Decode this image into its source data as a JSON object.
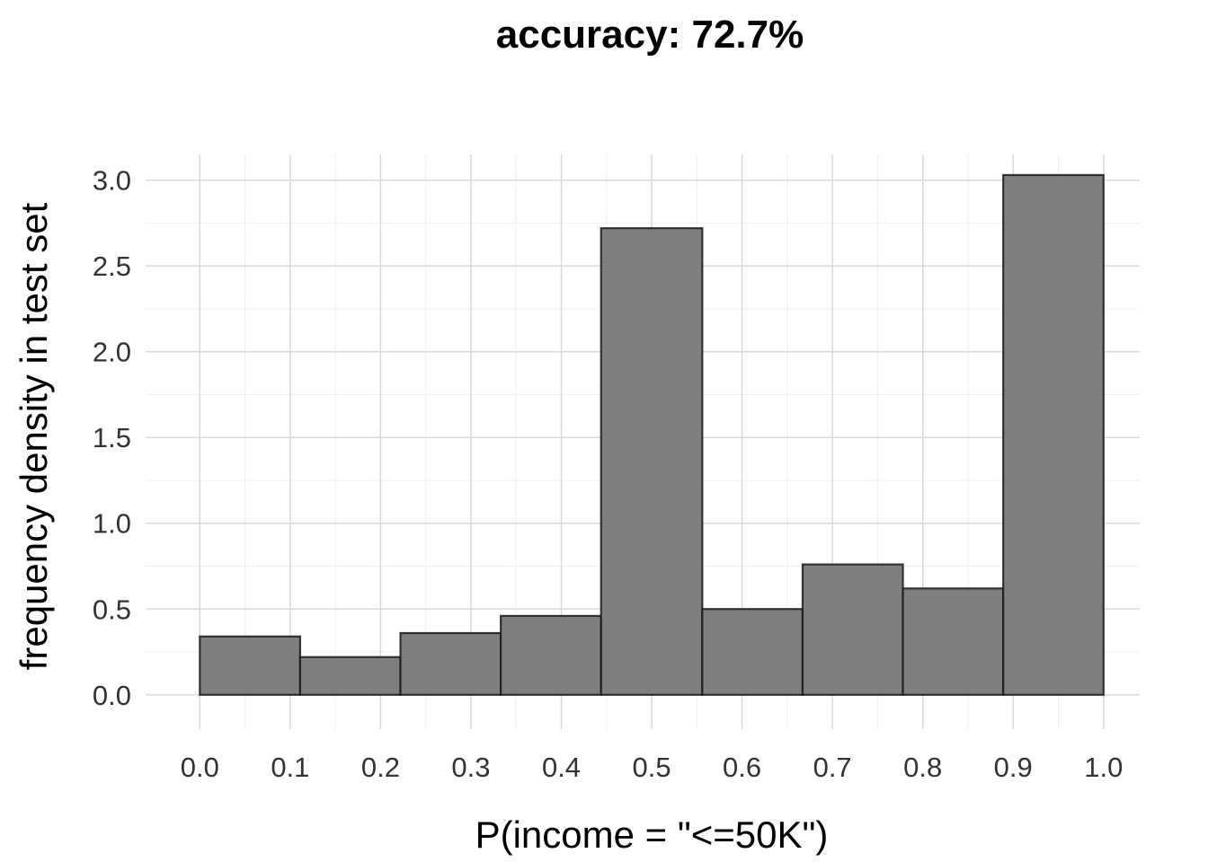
{
  "chart_data": {
    "type": "bar",
    "title": "accuracy: 72.7%",
    "xlabel": "P(income = \"<=50K\")",
    "ylabel": "frequency density in test set",
    "xlim": [
      -0.06,
      1.04
    ],
    "ylim": [
      -0.2,
      3.15
    ],
    "x_ticks": [
      "0.0",
      "0.1",
      "0.2",
      "0.3",
      "0.4",
      "0.5",
      "0.6",
      "0.7",
      "0.8",
      "0.9",
      "1.0"
    ],
    "y_ticks": [
      "0.0",
      "0.5",
      "1.0",
      "1.5",
      "2.0",
      "2.5",
      "3.0"
    ],
    "bins": [
      {
        "x0": 0.0,
        "x1": 0.111,
        "value": 0.34
      },
      {
        "x0": 0.111,
        "x1": 0.222,
        "value": 0.22
      },
      {
        "x0": 0.222,
        "x1": 0.333,
        "value": 0.36
      },
      {
        "x0": 0.333,
        "x1": 0.444,
        "value": 0.46
      },
      {
        "x0": 0.444,
        "x1": 0.556,
        "value": 2.72
      },
      {
        "x0": 0.556,
        "x1": 0.667,
        "value": 0.5
      },
      {
        "x0": 0.667,
        "x1": 0.778,
        "value": 0.76
      },
      {
        "x0": 0.778,
        "x1": 0.889,
        "value": 0.62
      },
      {
        "x0": 0.889,
        "x1": 1.0,
        "value": 3.03
      }
    ],
    "grid": true,
    "bar_fill": "#7f7f7f",
    "bar_stroke": "#1a1a1a",
    "grid_color": "#d9d9d9"
  }
}
